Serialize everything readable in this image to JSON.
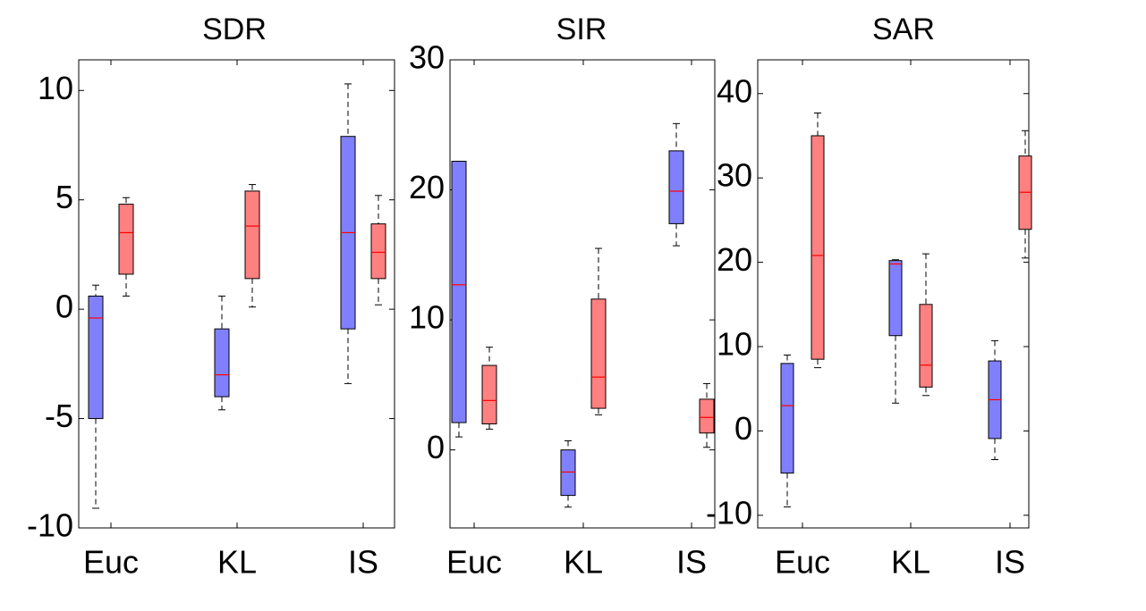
{
  "chart_data": [
    {
      "type": "box",
      "title": "SDR",
      "categories": [
        "Euc",
        "KL",
        "IS"
      ],
      "ylim": [
        -10,
        11.4
      ],
      "yticks": [
        -10,
        -5,
        0,
        5,
        10
      ],
      "ytick_labels": [
        "-10",
        "-5",
        "0",
        "5",
        "10"
      ],
      "grid": false,
      "series_colors": [
        "#8080ff",
        "#ff8080"
      ],
      "median_colors": [
        "#ff0000",
        "#ff0000"
      ],
      "boxes": [
        [
          {
            "min": -9.1,
            "q1": -5.0,
            "median": -0.4,
            "q3": 0.6,
            "max": 1.1
          },
          {
            "min": 0.6,
            "q1": 1.6,
            "median": 3.5,
            "q3": 4.8,
            "max": 5.1
          }
        ],
        [
          {
            "min": -4.6,
            "q1": -4.0,
            "median": -3.0,
            "q3": -0.9,
            "max": 0.6
          },
          {
            "min": 0.1,
            "q1": 1.4,
            "median": 3.8,
            "q3": 5.4,
            "max": 5.7
          }
        ],
        [
          {
            "min": -3.4,
            "q1": -0.9,
            "median": 3.5,
            "q3": 7.9,
            "max": 10.3
          },
          {
            "min": 0.2,
            "q1": 1.4,
            "median": 2.6,
            "q3": 3.9,
            "max": 5.2
          }
        ]
      ]
    },
    {
      "type": "box",
      "title": "SIR",
      "categories": [
        "Euc",
        "KL",
        "IS"
      ],
      "ylim": [
        -6,
        30
      ],
      "yticks": [
        0,
        10,
        20,
        30
      ],
      "ytick_labels": [
        "0",
        "10",
        "20",
        "30"
      ],
      "grid": false,
      "series_colors": [
        "#8080ff",
        "#ff8080"
      ],
      "median_colors": [
        "#ff0000",
        "#ff0000"
      ],
      "boxes": [
        [
          {
            "min": 1.0,
            "q1": 2.1,
            "median": 12.7,
            "q3": 22.2,
            "max": 22.2
          },
          {
            "min": 1.6,
            "q1": 2.0,
            "median": 3.8,
            "q3": 6.5,
            "max": 7.9
          }
        ],
        [
          {
            "min": -4.4,
            "q1": -3.5,
            "median": -1.7,
            "q3": 0.0,
            "max": 0.7
          },
          {
            "min": 2.7,
            "q1": 3.2,
            "median": 5.6,
            "q3": 11.6,
            "max": 15.5
          }
        ],
        [
          {
            "min": 15.7,
            "q1": 17.4,
            "median": 19.9,
            "q3": 23.0,
            "max": 25.1
          },
          {
            "min": 0.2,
            "q1": 1.3,
            "median": 2.5,
            "q3": 3.9,
            "max": 5.1
          }
        ]
      ]
    },
    {
      "type": "box",
      "title": "SAR",
      "categories": [
        "Euc",
        "KL",
        "IS"
      ],
      "ylim": [
        -11.5,
        44
      ],
      "yticks": [
        -10,
        0,
        10,
        20,
        30,
        40
      ],
      "ytick_labels": [
        "-10",
        "0",
        "10",
        "20",
        "30",
        "40"
      ],
      "grid": false,
      "series_colors": [
        "#8080ff",
        "#ff8080"
      ],
      "median_colors": [
        "#ff0000",
        "#ff0000"
      ],
      "boxes": [
        [
          {
            "min": -9.0,
            "q1": -5.0,
            "median": 3.0,
            "q3": 8.0,
            "max": 9.0
          },
          {
            "min": 7.5,
            "q1": 8.5,
            "median": 20.8,
            "q3": 35.0,
            "max": 37.7
          }
        ],
        [
          {
            "min": 3.3,
            "q1": 11.3,
            "median": 19.8,
            "q3": 20.2,
            "max": 20.3
          },
          {
            "min": 4.2,
            "q1": 5.2,
            "median": 7.8,
            "q3": 15.0,
            "max": 21.0
          }
        ],
        [
          {
            "min": -3.4,
            "q1": -0.9,
            "median": 3.7,
            "q3": 8.3,
            "max": 10.7
          },
          {
            "min": 20.5,
            "q1": 23.9,
            "median": 28.3,
            "q3": 32.6,
            "max": 35.6
          }
        ]
      ]
    }
  ]
}
